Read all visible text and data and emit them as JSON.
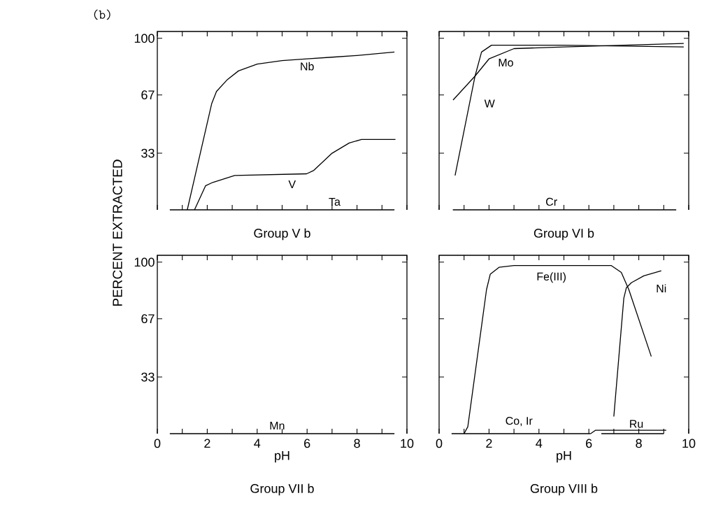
{
  "chart_data": [
    {
      "type": "line",
      "title": "Group V b",
      "ylabel": "PERCENT EXTRACTED",
      "annotations": [
        "(b)"
      ],
      "xlim": [
        0,
        10
      ],
      "ylim": [
        0,
        104
      ],
      "tick_labels": "y",
      "xticks": [
        {
          "value": 0,
          "label": null
        },
        {
          "value": 1,
          "label": null
        },
        {
          "value": 2,
          "label": null
        },
        {
          "value": 3,
          "label": null
        },
        {
          "value": 4,
          "label": null
        },
        {
          "value": 5,
          "label": null
        },
        {
          "value": 6,
          "label": null
        },
        {
          "value": 7,
          "label": null
        },
        {
          "value": 8,
          "label": null
        },
        {
          "value": 9,
          "label": null
        },
        {
          "value": 10,
          "label": null
        }
      ],
      "yticks": [
        33,
        67,
        100
      ],
      "series": [
        {
          "name": "Nb",
          "color": "#000000",
          "x": [
            1.2,
            2.18,
            2.37,
            2.81,
            3.25,
            4,
            5,
            6,
            7,
            8,
            9.5
          ],
          "values": [
            0,
            62,
            69,
            76,
            81,
            85,
            87,
            88,
            89,
            90,
            92
          ]
        },
        {
          "name": "V",
          "color": "#000000",
          "x": [
            1.49,
            1.93,
            2.22,
            3.1,
            5.98,
            6.27,
            7.0,
            7.69,
            8.18,
            9.54
          ],
          "values": [
            0,
            14,
            16,
            20,
            21,
            23,
            33,
            39,
            41,
            41
          ]
        },
        {
          "name": "Ta",
          "color": "#000000",
          "x": [
            0.5,
            9.5
          ],
          "values": [
            0,
            0
          ]
        }
      ]
    },
    {
      "type": "line",
      "title": "Group VI b",
      "xlim": [
        0,
        10
      ],
      "ylim": [
        0,
        104
      ],
      "tick_labels": false,
      "xticks": [
        {
          "value": 0,
          "label": null
        },
        {
          "value": 1,
          "label": null
        },
        {
          "value": 2,
          "label": null
        },
        {
          "value": 3,
          "label": null
        },
        {
          "value": 4,
          "label": null
        },
        {
          "value": 5,
          "label": null
        },
        {
          "value": 6,
          "label": null
        },
        {
          "value": 7,
          "label": null
        },
        {
          "value": 8,
          "label": null
        },
        {
          "value": 9,
          "label": null
        },
        {
          "value": 10,
          "label": null
        }
      ],
      "yticks": [
        {
          "value": 33,
          "label": null
        },
        {
          "value": 67,
          "label": null
        },
        {
          "value": 100,
          "label": null
        }
      ],
      "series": [
        {
          "name": "Mo",
          "color": "#000000",
          "x": [
            0.56,
            1.44,
            2,
            3,
            5,
            9.8
          ],
          "values": [
            64,
            78,
            88,
            94,
            95,
            97
          ]
        },
        {
          "name": "W",
          "color": "#000000",
          "x": [
            0.64,
            1.44,
            1.7,
            2.1,
            5,
            9.8
          ],
          "values": [
            20,
            78,
            92,
            96,
            96,
            95
          ]
        },
        {
          "name": "Cr",
          "color": "#000000",
          "x": [
            0.55,
            9.5
          ],
          "values": [
            0,
            0
          ]
        }
      ]
    },
    {
      "type": "line",
      "title": "Group VII b",
      "xlabel": "pH",
      "xlim": [
        0,
        10
      ],
      "ylim": [
        0,
        104
      ],
      "xticks": [
        {
          "value": 0,
          "label": "0"
        },
        {
          "value": 1,
          "label": null
        },
        {
          "value": 2,
          "label": "2"
        },
        {
          "value": 3,
          "label": null
        },
        {
          "value": 4,
          "label": "4"
        },
        {
          "value": 5,
          "label": null
        },
        {
          "value": 6,
          "label": "6"
        },
        {
          "value": 7,
          "label": null
        },
        {
          "value": 8,
          "label": "8"
        },
        {
          "value": 9,
          "label": null
        },
        {
          "value": 10,
          "label": "10"
        }
      ],
      "yticks": [
        33,
        67,
        100
      ],
      "series": [
        {
          "name": "Mn",
          "color": "#000000",
          "x": [
            0.5,
            9.5
          ],
          "values": [
            0,
            0
          ]
        }
      ]
    },
    {
      "type": "line",
      "title": "Group VIII b",
      "xlabel": "pH",
      "xlim": [
        0,
        10
      ],
      "ylim": [
        0,
        104
      ],
      "tick_labels": "x",
      "xticks": [
        {
          "value": 0,
          "label": "0"
        },
        {
          "value": 1,
          "label": null
        },
        {
          "value": 2,
          "label": "2"
        },
        {
          "value": 3,
          "label": null
        },
        {
          "value": 4,
          "label": "4"
        },
        {
          "value": 5,
          "label": null
        },
        {
          "value": 6,
          "label": "6"
        },
        {
          "value": 7,
          "label": null
        },
        {
          "value": 8,
          "label": "8"
        },
        {
          "value": 9,
          "label": null
        },
        {
          "value": 10,
          "label": "10"
        }
      ],
      "yticks": [
        {
          "value": 33,
          "label": null
        },
        {
          "value": 67,
          "label": null
        },
        {
          "value": 100,
          "label": null
        }
      ],
      "series": [
        {
          "name": "Fe(III)",
          "color": "#000000",
          "x": [
            1.0,
            1.15,
            1.9,
            2.05,
            2.4,
            3,
            6.9,
            7.3,
            7.6,
            8.5
          ],
          "values": [
            0,
            4,
            84,
            93,
            97,
            98,
            98,
            94,
            84,
            45
          ]
        },
        {
          "name": "Ni",
          "color": "#000000",
          "x": [
            7.0,
            7.4,
            7.5,
            7.7,
            8.2,
            8.9
          ],
          "values": [
            10,
            79,
            85,
            88,
            92,
            95
          ]
        },
        {
          "name": "Co, Ir",
          "color": "#000000",
          "x": [
            0.5,
            6.07,
            6.3,
            6.5,
            9.0
          ],
          "values": [
            0,
            0,
            null,
            0,
            0
          ]
        },
        {
          "name": "Ru",
          "color": "#000000",
          "x": [
            6.07,
            6.27,
            9.1
          ],
          "values": [
            0,
            2,
            2
          ]
        }
      ]
    }
  ]
}
